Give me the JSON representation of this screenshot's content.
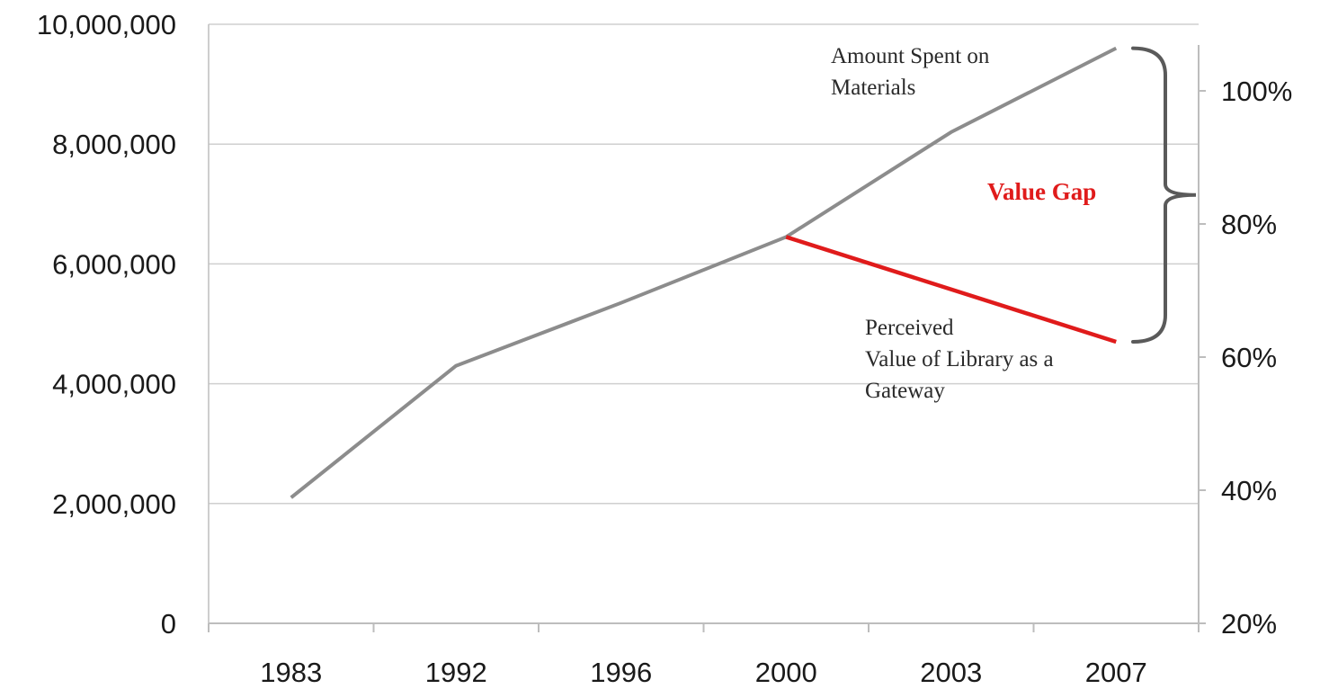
{
  "chart_data": {
    "type": "line",
    "categories": [
      "1983",
      "1992",
      "1996",
      "2000",
      "2003",
      "2007"
    ],
    "y_left": {
      "ylim": [
        0,
        10000000
      ],
      "ticks": [
        "0",
        "2,000,000",
        "4,000,000",
        "6,000,000",
        "8,000,000",
        "10,000,000"
      ]
    },
    "y_right": {
      "ylim": [
        20,
        110
      ],
      "ticks": [
        "20%",
        "40%",
        "60%",
        "80%",
        "100%"
      ]
    },
    "grid": true,
    "series": [
      {
        "name": "Amount Spent on Materials",
        "axis": "left",
        "color": "#8c8c8c",
        "points": [
          {
            "x": "1983",
            "y": 2100000
          },
          {
            "x": "1992",
            "y": 4300000
          },
          {
            "x": "1996",
            "y": 5350000
          },
          {
            "x": "2000",
            "y": 6450000
          },
          {
            "x": "2003",
            "y": 8200000
          },
          {
            "x": "2007",
            "y": 9600000
          }
        ]
      },
      {
        "name": "Perceived Value of Library as a Gateway",
        "axis": "left",
        "color": "#e01b1b",
        "points": [
          {
            "x": "2000",
            "y": 6450000
          },
          {
            "x": "2007",
            "y": 4700000
          }
        ]
      }
    ],
    "annotations": {
      "amount_spent_lines": [
        "Amount Spent on",
        "Materials"
      ],
      "perceived_lines": [
        "Perceived",
        "Value of Library as a",
        "Gateway"
      ],
      "value_gap": "Value Gap",
      "value_gap_color": "#e01b1b",
      "bracket_color": "#5a5a5a"
    },
    "grid_color": "#cfcfcf",
    "axis_color": "#bdbdbd"
  }
}
